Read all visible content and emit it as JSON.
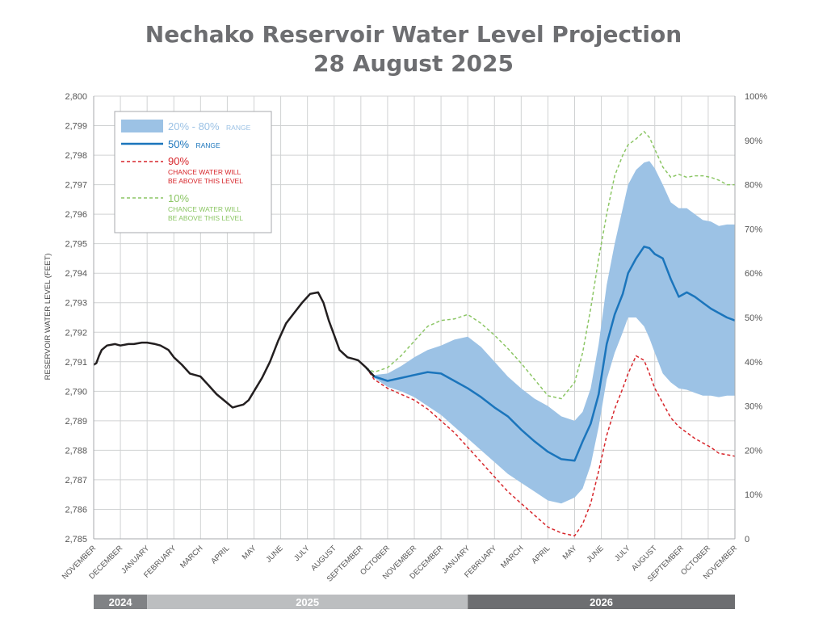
{
  "chart_data": {
    "type": "area",
    "title": "Nechako Reservoir Water Level Projection",
    "subtitle": "28 August 2025",
    "ylabel": "RESERVOIR WATER LEVEL (FEET)",
    "ylim": [
      2785,
      2800
    ],
    "y_ticks": [
      "2,785",
      "2,786",
      "2,787",
      "2,788",
      "2,789",
      "2,790",
      "2,791",
      "2,792",
      "2,793",
      "2,794",
      "2,795",
      "2,796",
      "2,797",
      "2,798",
      "2,799",
      "2,800"
    ],
    "y2_ticks": [
      "0",
      "10%",
      "20%",
      "30%",
      "40%",
      "50%",
      "60%",
      "70%",
      "80%",
      "90%",
      "100%"
    ],
    "x_labels": [
      "NOVEMBER",
      "DECEMBER",
      "JANUARY",
      "FEBRUARY",
      "MARCH",
      "APRIL",
      "MAY",
      "JUNE",
      "JULY",
      "AUGUST",
      "SEPTEMBER",
      "OCTOBER",
      "NOVEMBER",
      "DECEMBER",
      "JANUARY",
      "FEBRUARY",
      "MARCH",
      "APRIL",
      "MAY",
      "JUNE",
      "JULY",
      "AUGUST",
      "SEPTEMBER",
      "OCTOBER",
      "NOVEMBER"
    ],
    "x_range_months": [
      0,
      24
    ],
    "years": [
      {
        "label": "2024",
        "start": 0,
        "end": 2,
        "color": "#808285"
      },
      {
        "label": "2025",
        "start": 2,
        "end": 14,
        "color": "#bcbec0"
      },
      {
        "label": "2026",
        "start": 14,
        "end": 24,
        "color": "#6d6e71"
      }
    ],
    "grid": true,
    "legend_position": "top-left",
    "legend": {
      "band_label": "20% - 80%",
      "band_suffix": "RANGE",
      "median_label": "50%",
      "median_suffix": "RANGE",
      "p90_label": "90%",
      "p90_desc_1": "CHANCE WATER WILL",
      "p90_desc_2": "BE ABOVE THIS LEVEL",
      "p10_label": "10%",
      "p10_desc_1": "CHANCE WATER WILL",
      "p10_desc_2": "BE ABOVE THIS LEVEL"
    },
    "colors": {
      "historical": "#231f20",
      "median": "#1b75bc",
      "band": "#9cc2e5",
      "p90": "#d7262b",
      "p10": "#8cc665",
      "grid": "#d0d2d3"
    },
    "series": [
      {
        "id": "historical",
        "x": [
          0,
          0.1,
          0.2,
          0.3,
          0.5,
          0.8,
          1,
          1.3,
          1.5,
          1.8,
          2,
          2.3,
          2.5,
          2.8,
          3,
          3.3,
          3.6,
          4,
          4.3,
          4.6,
          5,
          5.2,
          5.4,
          5.6,
          5.8,
          6,
          6.3,
          6.6,
          6.9,
          7.2,
          7.5,
          7.8,
          8.1,
          8.4,
          8.6,
          8.8,
          9,
          9.2,
          9.5,
          9.7,
          9.9,
          10.2,
          10.5
        ],
        "y": [
          2790.9,
          2790.95,
          2791.2,
          2791.4,
          2791.55,
          2791.6,
          2791.55,
          2791.6,
          2791.6,
          2791.65,
          2791.65,
          2791.6,
          2791.55,
          2791.4,
          2791.15,
          2790.9,
          2790.6,
          2790.5,
          2790.2,
          2789.9,
          2789.6,
          2789.45,
          2789.5,
          2789.55,
          2789.7,
          2790,
          2790.45,
          2791,
          2791.7,
          2792.3,
          2792.65,
          2793,
          2793.3,
          2793.35,
          2793,
          2792.4,
          2791.9,
          2791.4,
          2791.15,
          2791.1,
          2791.05,
          2790.8,
          2790.5
        ]
      },
      {
        "id": "median",
        "x": [
          10.2,
          10.5,
          11,
          11.5,
          12,
          12.5,
          13,
          13.5,
          14,
          14.5,
          15,
          15.5,
          16,
          16.5,
          17,
          17.5,
          18,
          18.3,
          18.6,
          18.9,
          19.2,
          19.5,
          19.8,
          20,
          20.3,
          20.6,
          20.8,
          21,
          21.3,
          21.6,
          21.9,
          22.2,
          22.5,
          22.8,
          23.1,
          23.4,
          23.7,
          24
        ],
        "y": [
          2790.8,
          2790.5,
          2790.35,
          2790.45,
          2790.55,
          2790.65,
          2790.6,
          2790.35,
          2790.1,
          2789.8,
          2789.45,
          2789.15,
          2788.7,
          2788.3,
          2787.95,
          2787.7,
          2787.65,
          2788.3,
          2788.9,
          2789.9,
          2791.6,
          2792.6,
          2793.3,
          2794,
          2794.5,
          2794.9,
          2794.85,
          2794.65,
          2794.5,
          2793.8,
          2793.2,
          2793.35,
          2793.2,
          2793.0,
          2792.8,
          2792.65,
          2792.5,
          2792.4
        ]
      },
      {
        "id": "band_upper",
        "x": [
          10.2,
          10.5,
          11,
          11.5,
          12,
          12.5,
          13,
          13.5,
          14,
          14.5,
          15,
          15.5,
          16,
          16.5,
          17,
          17.5,
          18,
          18.3,
          18.6,
          18.9,
          19.2,
          19.5,
          19.8,
          20,
          20.3,
          20.6,
          20.8,
          21,
          21.3,
          21.6,
          21.9,
          22.2,
          22.5,
          22.8,
          23.1,
          23.4,
          23.7,
          24
        ],
        "y": [
          2790.8,
          2790.55,
          2790.6,
          2790.85,
          2791.15,
          2791.4,
          2791.55,
          2791.75,
          2791.85,
          2791.5,
          2791.0,
          2790.5,
          2790.1,
          2789.75,
          2789.5,
          2789.15,
          2789.0,
          2789.3,
          2790.1,
          2791.6,
          2793.6,
          2795.0,
          2796.2,
          2797.0,
          2797.5,
          2797.75,
          2797.8,
          2797.55,
          2797.0,
          2796.4,
          2796.2,
          2796.2,
          2796.0,
          2795.8,
          2795.75,
          2795.6,
          2795.65,
          2795.65
        ]
      },
      {
        "id": "band_lower",
        "x": [
          10.2,
          10.5,
          11,
          11.5,
          12,
          12.5,
          13,
          13.5,
          14,
          14.5,
          15,
          15.5,
          16,
          16.5,
          17,
          17.5,
          18,
          18.3,
          18.6,
          18.9,
          19.2,
          19.5,
          19.8,
          20,
          20.3,
          20.6,
          20.8,
          21,
          21.3,
          21.6,
          21.9,
          22.2,
          22.5,
          22.8,
          23.1,
          23.4,
          23.7,
          24
        ],
        "y": [
          2790.8,
          2790.45,
          2790.15,
          2790.0,
          2789.8,
          2789.5,
          2789.2,
          2788.8,
          2788.4,
          2788.0,
          2787.6,
          2787.2,
          2786.9,
          2786.6,
          2786.3,
          2786.2,
          2786.4,
          2786.7,
          2787.5,
          2788.8,
          2790.4,
          2791.3,
          2792.0,
          2792.5,
          2792.5,
          2792.2,
          2791.8,
          2791.3,
          2790.6,
          2790.3,
          2790.1,
          2790.05,
          2789.95,
          2789.85,
          2789.85,
          2789.8,
          2789.85,
          2789.85
        ]
      },
      {
        "id": "p90",
        "x": [
          10.2,
          10.5,
          11,
          11.5,
          12,
          12.5,
          13,
          13.5,
          14,
          14.5,
          15,
          15.5,
          16,
          16.5,
          17,
          17.5,
          18,
          18.3,
          18.6,
          18.9,
          19.2,
          19.5,
          19.8,
          20,
          20.3,
          20.6,
          20.8,
          21,
          21.3,
          21.6,
          21.9,
          22.2,
          22.5,
          22.8,
          23.1,
          23.4,
          23.7,
          24
        ],
        "y": [
          2790.8,
          2790.4,
          2790.1,
          2789.9,
          2789.7,
          2789.4,
          2789.0,
          2788.6,
          2788.1,
          2787.6,
          2787.1,
          2786.6,
          2786.2,
          2785.8,
          2785.4,
          2785.2,
          2785.1,
          2785.5,
          2786.2,
          2787.3,
          2788.5,
          2789.4,
          2790.1,
          2790.6,
          2791.2,
          2791.05,
          2790.6,
          2790.1,
          2789.6,
          2789.1,
          2788.8,
          2788.6,
          2788.4,
          2788.25,
          2788.1,
          2787.9,
          2787.85,
          2787.8
        ]
      },
      {
        "id": "p10",
        "x": [
          10.2,
          10.5,
          11,
          11.5,
          12,
          12.5,
          13,
          13.5,
          14,
          14.5,
          15,
          15.5,
          16,
          16.5,
          17,
          17.5,
          18,
          18.3,
          18.6,
          18.9,
          19.2,
          19.5,
          19.8,
          20,
          20.3,
          20.6,
          20.8,
          21,
          21.3,
          21.6,
          21.9,
          22.2,
          22.5,
          22.8,
          23.1,
          23.4,
          23.7,
          24
        ],
        "y": [
          2790.8,
          2790.65,
          2790.8,
          2791.2,
          2791.7,
          2792.2,
          2792.4,
          2792.45,
          2792.6,
          2792.3,
          2791.9,
          2791.45,
          2790.95,
          2790.4,
          2789.85,
          2789.75,
          2790.3,
          2791.3,
          2792.8,
          2794.5,
          2796.0,
          2797.3,
          2798.0,
          2798.35,
          2798.55,
          2798.8,
          2798.6,
          2798.2,
          2797.6,
          2797.25,
          2797.35,
          2797.25,
          2797.3,
          2797.3,
          2797.25,
          2797.15,
          2797.0,
          2797.0
        ]
      }
    ]
  }
}
